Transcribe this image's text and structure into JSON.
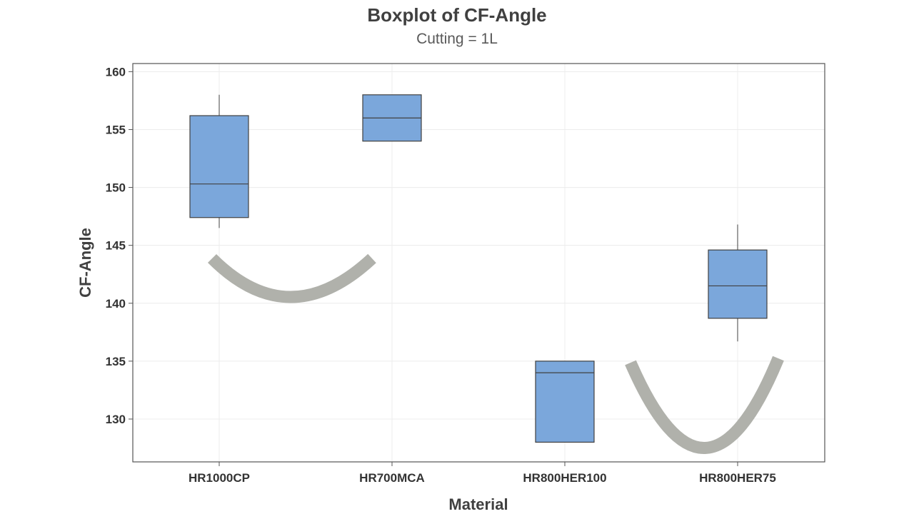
{
  "chart_data": {
    "type": "boxplot",
    "title": "Boxplot of CF-Angle",
    "subtitle": "Cutting = 1L",
    "xlabel": "Material",
    "ylabel": "CF-Angle",
    "ylim": [
      126.3,
      160.7
    ],
    "yticks": [
      130,
      135,
      140,
      145,
      150,
      155,
      160
    ],
    "categories": [
      "HR1000CP",
      "HR700MCA",
      "HR800HER100",
      "HR800HER75"
    ],
    "boxes": [
      {
        "category": "HR1000CP",
        "whisker_low": 146.5,
        "q1": 147.4,
        "median": 150.3,
        "q3": 156.2,
        "whisker_high": 158.0
      },
      {
        "category": "HR700MCA",
        "whisker_low": 154.0,
        "q1": 154.0,
        "median": 156.0,
        "q3": 158.0,
        "whisker_high": 158.0
      },
      {
        "category": "HR800HER100",
        "whisker_low": 128.0,
        "q1": 128.0,
        "median": 134.0,
        "q3": 135.0,
        "whisker_high": 135.0
      },
      {
        "category": "HR800HER75",
        "whisker_low": 136.7,
        "q1": 138.7,
        "median": 141.5,
        "q3": 144.6,
        "whisker_high": 146.8
      }
    ],
    "grid": true,
    "box_color": "#7ba7db",
    "box_edge_color": "#404040",
    "grid_color": "#ececec"
  },
  "annotations": {
    "smile_color": "#b0b1ab"
  }
}
